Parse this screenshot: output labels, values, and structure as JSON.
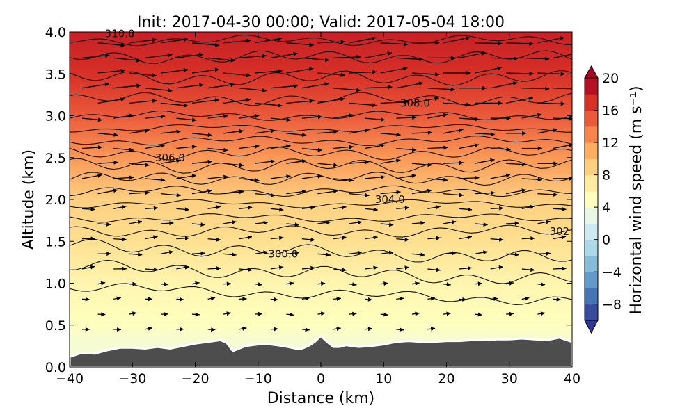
{
  "chart_data": {
    "type": "contour-vector-cross-section",
    "title": "Init: 2017-04-30 00:00; Valid: 2017-05-04 18:00",
    "xlabel": "Distance (km)",
    "ylabel": "Altitude (km)",
    "xlim": [
      -40,
      40
    ],
    "ylim": [
      0.0,
      4.0
    ],
    "x_ticks": [
      -40,
      -30,
      -20,
      -10,
      0,
      10,
      20,
      30,
      40
    ],
    "x_tick_labels": [
      "−40",
      "−30",
      "−20",
      "−10",
      "0",
      "10",
      "20",
      "30",
      "40"
    ],
    "y_ticks": [
      0.0,
      0.5,
      1.0,
      1.5,
      2.0,
      2.5,
      3.0,
      3.5,
      4.0
    ],
    "y_tick_labels": [
      "0.0",
      "0.5",
      "1.0",
      "1.5",
      "2.0",
      "2.5",
      "3.0",
      "3.5",
      "4.0"
    ],
    "colorbar": {
      "label": "Horizontal wind speed (m s⁻¹)",
      "range": [
        -10,
        20
      ],
      "ticks": [
        20,
        16,
        12,
        8,
        4,
        0,
        -4,
        -8
      ],
      "tick_labels": [
        "20",
        "16",
        "12",
        "8",
        "4",
        "0",
        "−4",
        "−8"
      ],
      "colormap": "RdYlBu_r",
      "colors": [
        "#313695",
        "#4575b4",
        "#74add1",
        "#abd9e9",
        "#e0f3f8",
        "#ffffbf",
        "#fee090",
        "#fdae61",
        "#f46d43",
        "#d73027",
        "#a50026"
      ]
    },
    "wind_speed_profile": {
      "altitude_km": [
        0.3,
        0.5,
        1.0,
        1.5,
        2.0,
        2.5,
        3.0,
        3.5,
        4.0
      ],
      "speed_ms": [
        4,
        5,
        6,
        8,
        9,
        12,
        15,
        17,
        18
      ]
    },
    "theta_contour_labels": [
      {
        "value": "300.0",
        "x": -6,
        "y": 1.35
      },
      {
        "value": "302",
        "x": 38,
        "y": 1.62
      },
      {
        "value": "304.0",
        "x": 11,
        "y": 2.0
      },
      {
        "value": "306.0",
        "x": -24,
        "y": 2.5
      },
      {
        "value": "308.0",
        "x": 15,
        "y": 3.15
      },
      {
        "value": "310.0",
        "x": -32,
        "y": 3.98
      }
    ],
    "terrain": {
      "x": [
        -40,
        -38,
        -36,
        -34,
        -32,
        -30,
        -28,
        -26,
        -24,
        -22,
        -20,
        -18,
        -16,
        -15,
        -14,
        -12,
        -10,
        -8,
        -6,
        -4,
        -3,
        -2,
        -1,
        0,
        1,
        2,
        3,
        4,
        5,
        6,
        8,
        10,
        12,
        14,
        16,
        18,
        20,
        22,
        24,
        26,
        28,
        30,
        32,
        34,
        36,
        38,
        40
      ],
      "height_km": [
        0.12,
        0.17,
        0.16,
        0.2,
        0.23,
        0.23,
        0.22,
        0.24,
        0.22,
        0.25,
        0.28,
        0.3,
        0.32,
        0.29,
        0.19,
        0.25,
        0.27,
        0.27,
        0.25,
        0.22,
        0.22,
        0.25,
        0.3,
        0.37,
        0.3,
        0.24,
        0.24,
        0.26,
        0.25,
        0.24,
        0.25,
        0.27,
        0.3,
        0.31,
        0.3,
        0.3,
        0.31,
        0.31,
        0.32,
        0.32,
        0.33,
        0.33,
        0.34,
        0.33,
        0.32,
        0.35,
        0.3
      ]
    }
  }
}
